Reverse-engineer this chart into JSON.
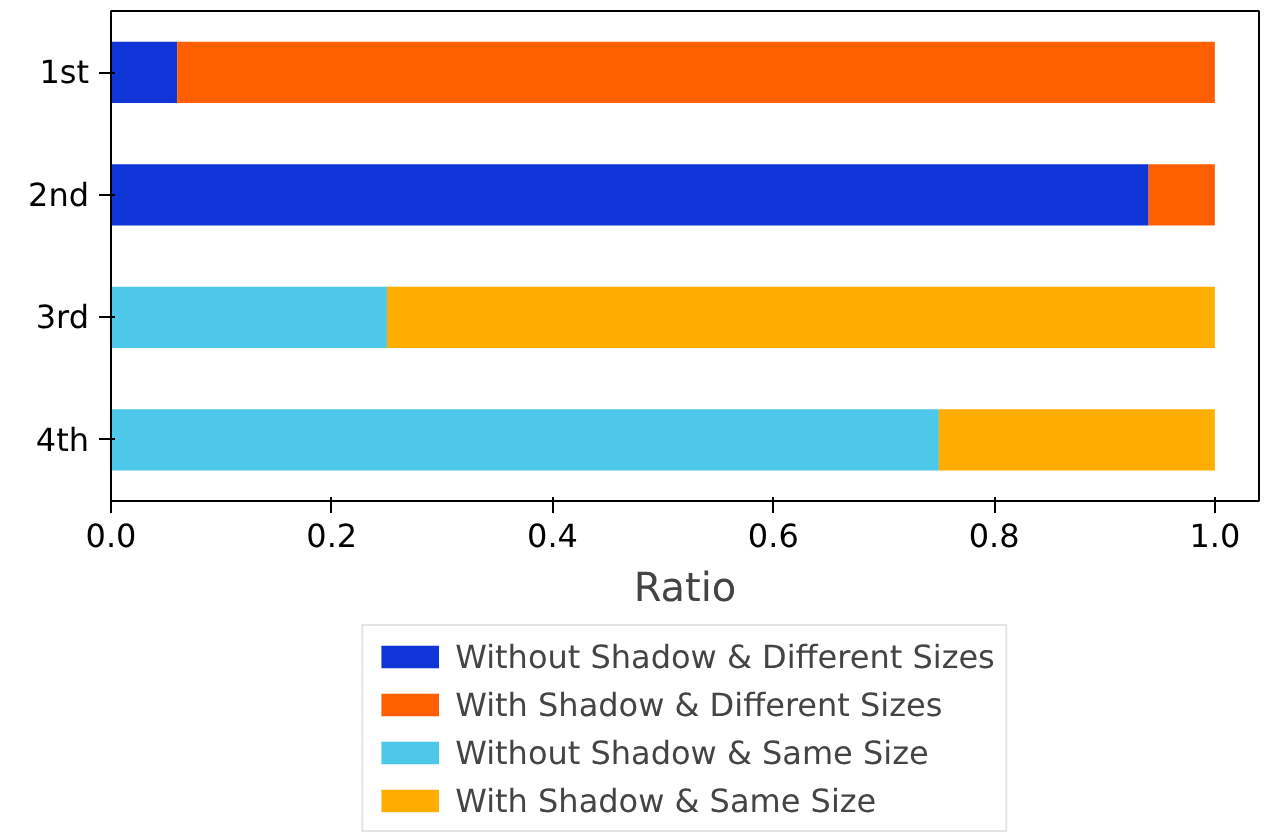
{
  "chart_data": {
    "type": "bar",
    "orientation": "horizontal",
    "stacked": true,
    "xlabel": "Ratio",
    "categories": [
      "1st",
      "2nd",
      "3rd",
      "4th"
    ],
    "series": [
      {
        "name": "Without Shadow & Different Sizes",
        "color": "#0f35d6",
        "values": [
          0.06,
          0.94,
          0,
          0
        ]
      },
      {
        "name": "With Shadow & Different Sizes",
        "color": "#ff5f00",
        "values": [
          0.94,
          0.06,
          0,
          0
        ]
      },
      {
        "name": "Without Shadow & Same Size",
        "color": "#4dc8ea",
        "values": [
          0,
          0,
          0.25,
          0.75
        ]
      },
      {
        "name": "With Shadow & Same Size",
        "color": "#ffae00",
        "values": [
          0,
          0,
          0.75,
          0.25
        ]
      }
    ],
    "xlim": [
      0,
      1.04
    ],
    "xticks": [
      {
        "value": 0,
        "label": "0.0"
      },
      {
        "value": 0.2,
        "label": "0.2"
      },
      {
        "value": 0.4,
        "label": "0.4"
      },
      {
        "value": 0.6,
        "label": "0.6"
      },
      {
        "value": 0.8,
        "label": "0.8"
      },
      {
        "value": 1,
        "label": "1.0"
      }
    ],
    "legend": "bottom",
    "grid": false
  }
}
